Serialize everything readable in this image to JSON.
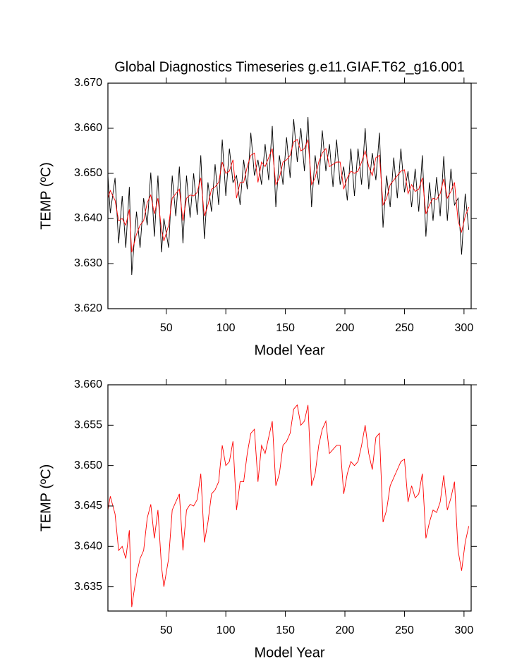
{
  "chart_data": [
    {
      "type": "line",
      "title": "Global Diagnostics Timeseries g.e11.GIAF.T62_g16.001",
      "x_label": "Model Year",
      "y_label": "TEMP (ºC)",
      "x": [
        1,
        3,
        7,
        10,
        13,
        16,
        19,
        21,
        25,
        28,
        31,
        34,
        37,
        40,
        43,
        46,
        48,
        52,
        55,
        58,
        61,
        64,
        67,
        70,
        73,
        76,
        79,
        82,
        85,
        88,
        91,
        94,
        97,
        100,
        103,
        106,
        109,
        112,
        115,
        118,
        121,
        124,
        127,
        130,
        133,
        136,
        139,
        142,
        145,
        148,
        151,
        154,
        157,
        160,
        163,
        166,
        169,
        172,
        175,
        178,
        181,
        184,
        187,
        190,
        193,
        196,
        199,
        202,
        205,
        208,
        211,
        214,
        217,
        220,
        223,
        226,
        229,
        232,
        235,
        238,
        241,
        244,
        247,
        250,
        253,
        256,
        259,
        262,
        265,
        268,
        271,
        274,
        277,
        280,
        283,
        286,
        289,
        292,
        295,
        298,
        301,
        304
      ],
      "series": [
        {
          "color": "#000000",
          "values": [
            3.6495,
            3.6412,
            3.649,
            3.6345,
            3.645,
            3.6335,
            3.647,
            3.6275,
            3.6415,
            3.6335,
            3.6445,
            3.6385,
            3.6502,
            3.636,
            3.6495,
            3.6325,
            3.64,
            3.6335,
            3.6495,
            3.6405,
            3.6515,
            3.6345,
            3.6495,
            3.6402,
            3.65,
            3.6408,
            3.654,
            3.6355,
            3.648,
            3.6415,
            3.652,
            3.643,
            3.6575,
            3.645,
            3.6555,
            3.648,
            3.6495,
            3.643,
            3.653,
            3.6465,
            3.659,
            3.6495,
            3.653,
            3.6475,
            3.6565,
            3.6485,
            3.6605,
            3.6425,
            3.654,
            3.6475,
            3.658,
            3.649,
            3.662,
            3.6525,
            3.66,
            3.6505,
            3.6625,
            3.6425,
            3.654,
            3.6475,
            3.6595,
            3.6505,
            3.6565,
            3.647,
            3.6575,
            3.6475,
            3.6515,
            3.644,
            3.6555,
            3.645,
            3.6555,
            3.6475,
            3.66,
            3.6465,
            3.6545,
            3.6485,
            3.659,
            3.638,
            3.6495,
            3.6425,
            3.6535,
            3.6445,
            3.6555,
            3.6458,
            3.6505,
            3.6425,
            3.651,
            3.6415,
            3.654,
            3.636,
            3.648,
            3.6395,
            3.6492,
            3.6405,
            3.6538,
            3.6395,
            3.651,
            3.643,
            3.6445,
            3.632,
            3.6455,
            3.6375
          ]
        },
        {
          "color": "#ff0000",
          "values": [
            3.6445,
            3.6462,
            3.644,
            3.6395,
            3.64,
            3.6385,
            3.642,
            3.6325,
            3.6365,
            3.6385,
            3.6395,
            3.6435,
            3.6452,
            3.641,
            3.6445,
            3.6375,
            3.635,
            3.6385,
            3.6445,
            3.6455,
            3.6465,
            3.6395,
            3.6445,
            3.6452,
            3.645,
            3.6458,
            3.649,
            3.6405,
            3.643,
            3.6465,
            3.647,
            3.648,
            3.6525,
            3.65,
            3.6505,
            3.653,
            3.6445,
            3.648,
            3.648,
            3.6515,
            3.654,
            3.6545,
            3.648,
            3.6525,
            3.6515,
            3.6535,
            3.6555,
            3.6475,
            3.649,
            3.6525,
            3.653,
            3.654,
            3.657,
            3.6575,
            3.655,
            3.6555,
            3.6575,
            3.6475,
            3.649,
            3.6525,
            3.6545,
            3.6555,
            3.6515,
            3.652,
            3.6525,
            3.6525,
            3.6465,
            3.649,
            3.6505,
            3.65,
            3.6505,
            3.6525,
            3.655,
            3.6515,
            3.6495,
            3.6535,
            3.654,
            3.643,
            3.6445,
            3.6475,
            3.6485,
            3.6495,
            3.6505,
            3.6508,
            3.6455,
            3.6475,
            3.646,
            3.6465,
            3.649,
            3.641,
            3.643,
            3.6445,
            3.6442,
            3.6455,
            3.6488,
            3.6445,
            3.646,
            3.648,
            3.6395,
            3.637,
            3.6405,
            3.6425
          ]
        }
      ],
      "xlim": [
        1,
        306
      ],
      "xticks": [
        50,
        100,
        150,
        200,
        250,
        300
      ],
      "ylim": [
        3.62,
        3.67
      ],
      "yticks": [
        {
          "value": 3.62,
          "label": "3.620"
        },
        {
          "value": 3.63,
          "label": "3.630"
        },
        {
          "value": 3.64,
          "label": "3.640"
        },
        {
          "value": 3.65,
          "label": "3.650"
        },
        {
          "value": 3.66,
          "label": "3.660"
        },
        {
          "value": 3.67,
          "label": "3.670"
        }
      ]
    },
    {
      "type": "line",
      "x_label": "Model Year",
      "y_label": "TEMP (ºC)",
      "x": [
        1,
        3,
        7,
        10,
        13,
        16,
        19,
        21,
        25,
        28,
        31,
        34,
        37,
        40,
        43,
        46,
        48,
        52,
        55,
        58,
        61,
        64,
        67,
        70,
        73,
        76,
        79,
        82,
        85,
        88,
        91,
        94,
        97,
        100,
        103,
        106,
        109,
        112,
        115,
        118,
        121,
        124,
        127,
        130,
        133,
        136,
        139,
        142,
        145,
        148,
        151,
        154,
        157,
        160,
        163,
        166,
        169,
        172,
        175,
        178,
        181,
        184,
        187,
        190,
        193,
        196,
        199,
        202,
        205,
        208,
        211,
        214,
        217,
        220,
        223,
        226,
        229,
        232,
        235,
        238,
        241,
        244,
        247,
        250,
        253,
        256,
        259,
        262,
        265,
        268,
        271,
        274,
        277,
        280,
        283,
        286,
        289,
        292,
        295,
        298,
        301,
        304
      ],
      "series": [
        {
          "color": "#ff0000",
          "values": [
            3.6445,
            3.6462,
            3.644,
            3.6395,
            3.64,
            3.6385,
            3.642,
            3.6325,
            3.6365,
            3.6385,
            3.6395,
            3.6435,
            3.6452,
            3.641,
            3.6445,
            3.6375,
            3.635,
            3.6385,
            3.6445,
            3.6455,
            3.6465,
            3.6395,
            3.6445,
            3.6452,
            3.645,
            3.6458,
            3.649,
            3.6405,
            3.643,
            3.6465,
            3.647,
            3.648,
            3.6525,
            3.65,
            3.6505,
            3.653,
            3.6445,
            3.648,
            3.648,
            3.6515,
            3.654,
            3.6545,
            3.648,
            3.6525,
            3.6515,
            3.6535,
            3.6555,
            3.6475,
            3.649,
            3.6525,
            3.653,
            3.654,
            3.657,
            3.6575,
            3.655,
            3.6555,
            3.6575,
            3.6475,
            3.649,
            3.6525,
            3.6545,
            3.6555,
            3.6515,
            3.652,
            3.6525,
            3.6525,
            3.6465,
            3.649,
            3.6505,
            3.65,
            3.6505,
            3.6525,
            3.655,
            3.6515,
            3.6495,
            3.6535,
            3.654,
            3.643,
            3.6445,
            3.6475,
            3.6485,
            3.6495,
            3.6505,
            3.6508,
            3.6455,
            3.6475,
            3.646,
            3.6465,
            3.649,
            3.641,
            3.643,
            3.6445,
            3.6442,
            3.6455,
            3.6488,
            3.6445,
            3.646,
            3.648,
            3.6395,
            3.637,
            3.6405,
            3.6425
          ]
        }
      ],
      "xlim": [
        1,
        306
      ],
      "xticks": [
        50,
        100,
        150,
        200,
        250,
        300
      ],
      "ylim": [
        3.632,
        3.66
      ],
      "yticks": [
        {
          "value": 3.635,
          "label": "3.635"
        },
        {
          "value": 3.64,
          "label": "3.640"
        },
        {
          "value": 3.645,
          "label": "3.645"
        },
        {
          "value": 3.65,
          "label": "3.650"
        },
        {
          "value": 3.655,
          "label": "3.655"
        },
        {
          "value": 3.66,
          "label": "3.660"
        }
      ]
    }
  ]
}
